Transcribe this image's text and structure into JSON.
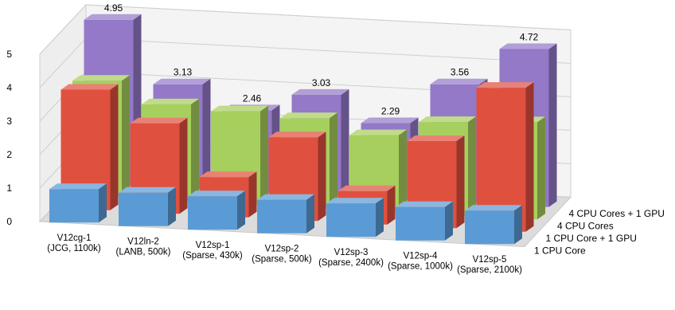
{
  "chart_data": {
    "type": "bar",
    "subtype": "3d-clustered-depth",
    "title": "",
    "ylim": [
      0,
      5
    ],
    "y_ticks": [
      0,
      1,
      2,
      3,
      4,
      5
    ],
    "grid": true,
    "categories": [
      {
        "line1": "V12cg-1",
        "line2": "(JCG, 1100k)"
      },
      {
        "line1": "V12ln-2",
        "line2": "(LANB, 500k)"
      },
      {
        "line1": "V12sp-1",
        "line2": "(Sparse, 430k)"
      },
      {
        "line1": "V12sp-2",
        "line2": "(Sparse, 500k)"
      },
      {
        "line1": "V12sp-3",
        "line2": "(Sparse, 2400k)"
      },
      {
        "line1": "V12sp-4",
        "line2": "(Sparse, 1000k)"
      },
      {
        "line1": "V12sp-5",
        "line2": "(Sparse, 2100k)"
      }
    ],
    "series": [
      {
        "name": "1 CPU Core",
        "color": "#5B9BD5",
        "values": [
          1,
          1,
          1,
          1,
          1,
          1,
          1
        ]
      },
      {
        "name": "1 CPU Core + 1 GPU",
        "color": "#E0503F",
        "values": [
          3.6,
          2.7,
          1.2,
          2.5,
          1.0,
          2.6,
          4.3
        ]
      },
      {
        "name": "4 CPU Cores",
        "color": "#A7CF5D",
        "values": [
          3.5,
          2.9,
          2.8,
          2.7,
          2.3,
          2.8,
          2.9
        ]
      },
      {
        "name": "4 CPU Cores + 1 GPU",
        "color": "#9479C8",
        "values": [
          4.95,
          3.13,
          2.46,
          3.03,
          2.29,
          3.56,
          4.72
        ]
      }
    ],
    "data_labels": {
      "series": "4 CPU Cores + 1 GPU",
      "labels": [
        "4.95",
        "3.13",
        "2.46",
        "3.03",
        "2.29",
        "3.56",
        "4.72"
      ]
    }
  }
}
